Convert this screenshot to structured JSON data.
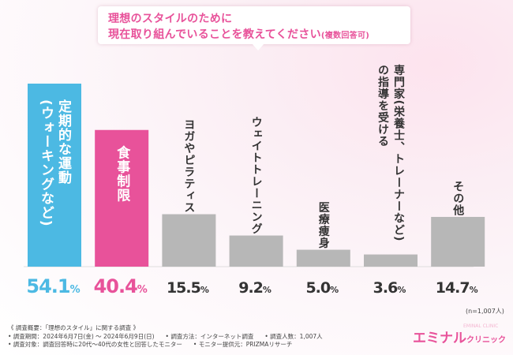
{
  "question": {
    "line1": "理想のスタイルのために",
    "line2": "現在取り組んでいることを教えてください",
    "note": "(複数回答可)"
  },
  "chart_data": {
    "type": "bar",
    "title": "理想のスタイルのために現在取り組んでいることを教えてください(複数回答可)",
    "categories": [
      "定期的な運動(ウォーキングなど)",
      "食事制限",
      "ヨガやピラティス",
      "ウェイトトレーニング",
      "医療痩身",
      "専門家(栄養士、トレーナーなど)の指導を受ける",
      "その他"
    ],
    "label_columns": [
      [
        "定期的な運動",
        "(ウォーキングなど)"
      ],
      [
        "食事制限"
      ],
      [
        "ヨガやピラティス"
      ],
      [
        "ウェイトトレーニング"
      ],
      [
        "医療痩身"
      ],
      [
        "専門家(栄養士、トレーナーなど)",
        "の指導を受ける"
      ],
      [
        "その他"
      ]
    ],
    "values": [
      54.1,
      40.4,
      15.5,
      9.2,
      5.0,
      3.6,
      14.7
    ],
    "value_labels": [
      "54.1",
      "40.4",
      "15.5",
      "9.2",
      "5.0",
      "3.6",
      "14.7"
    ],
    "unit": "%",
    "colors": [
      "#4cb9e3",
      "#e8529a",
      "#b7b7b7",
      "#b7b7b7",
      "#b7b7b7",
      "#b7b7b7",
      "#b7b7b7"
    ],
    "ylim": [
      0,
      60
    ],
    "xlabel": "",
    "ylabel": "",
    "n_note": "(n=1,007人)"
  },
  "footer": {
    "line1": "《 調査概要：「理想のスタイル」に関する調査 》",
    "period": "• 調査期間：2024年6月7日(金) ～ 2024年6月9日(日)",
    "method": "• 調査方法：インターネット調査",
    "count": "• 調査人数：1,007人",
    "target": "• 調査対象：調査回答時に20代～40代の女性と回答したモニター",
    "provider": "• モニター提供元：PRIZMAリサーチ"
  },
  "logo": {
    "main": "エミナル",
    "sub": "クリニック",
    "faint": "EMINAL CLINIC"
  }
}
